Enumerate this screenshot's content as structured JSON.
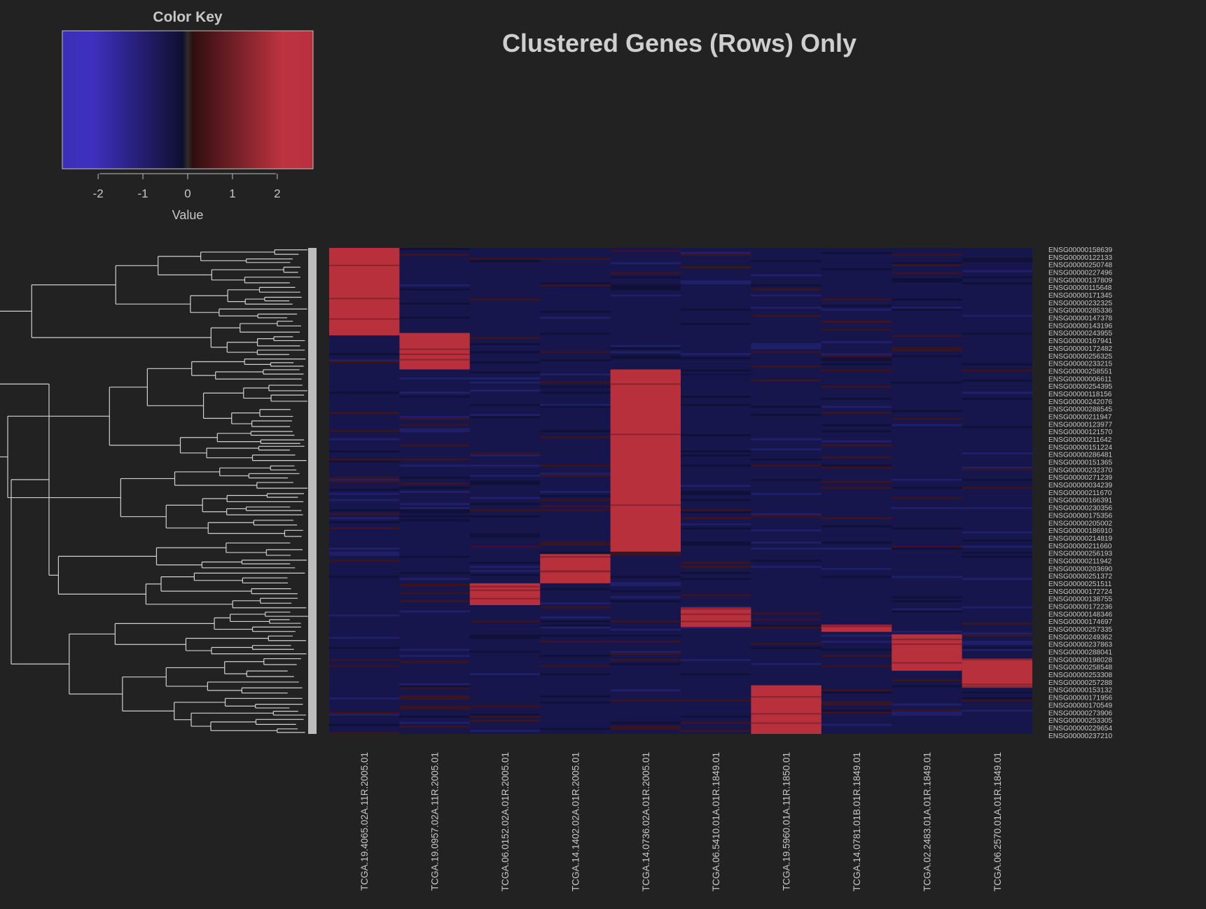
{
  "chart_data": {
    "type": "heatmap",
    "title": "Clustered Genes (Rows) Only",
    "color_key": {
      "title": "Color Key",
      "xlabel": "Value",
      "range": [
        -2.8,
        2.8
      ],
      "ticks": [
        -2,
        -1,
        0,
        1,
        2
      ],
      "tick_labels": [
        "-2",
        "-1",
        "0",
        "1",
        "2"
      ],
      "colors": [
        "#3a2fb8",
        "#11113a",
        "#2b2b2b",
        "#3a1414",
        "#b8303c"
      ]
    },
    "colors": {
      "background": "#222222",
      "high": "#b8303c",
      "low": "#16164e",
      "text": "#c8c8c8"
    },
    "columns": [
      "TCGA.19.4065.02A.11R.2005.01",
      "TCGA.19.0957.02A.11R.2005.01",
      "TCGA.06.0152.02A.01R.2005.01",
      "TCGA.14.1402.02A.01R.2005.01",
      "TCGA.14.0736.02A.01R.2005.01",
      "TCGA.06.5410.01A.01R.1849.01",
      "TCGA.19.5960.01A.11R.1850.01",
      "TCGA.14.0781.01B.01R.1849.01",
      "TCGA.02.2483.01A.01R.1849.01",
      "TCGA.06.2570.01A.01R.1849.01"
    ],
    "row_labels": [
      "ENSG00000158639",
      "ENSG00000122133",
      "ENSG00000250748",
      "ENSG00000227496",
      "ENSG00000137809",
      "ENSG00000115648",
      "ENSG00000171345",
      "ENSG00000232325",
      "ENSG00000285336",
      "ENSG00000147378",
      "ENSG00000143196",
      "ENSG00000243955",
      "ENSG00000167941",
      "ENSG00000172482",
      "ENSG00000256325",
      "ENSG00000233215",
      "ENSG00000258551",
      "ENSG00000006611",
      "ENSG00000254395",
      "ENSG00000118156",
      "ENSG00000242076",
      "ENSG00000288545",
      "ENSG00000211947",
      "ENSG00000123977",
      "ENSG00000121570",
      "ENSG00000211642",
      "ENSG00000151224",
      "ENSG00000286481",
      "ENSG00000151365",
      "ENSG00000232370",
      "ENSG00000271239",
      "ENSG00000034239",
      "ENSG00000211670",
      "ENSG00000166391",
      "ENSG00000230356",
      "ENSG00000175356",
      "ENSG00000205002",
      "ENSG00000186910",
      "ENSG00000214819",
      "ENSG00000211660",
      "ENSG00000256193",
      "ENSG00000211942",
      "ENSG00000203690",
      "ENSG00000251372",
      "ENSG00000251511",
      "ENSG00000172724",
      "ENSG00000138755",
      "ENSG00000172236",
      "ENSG00000148346",
      "ENSG00000174697",
      "ENSG00000257335",
      "ENSG00000249362",
      "ENSG00000237863",
      "ENSG00000288041",
      "ENSG00000198028",
      "ENSG00000258548",
      "ENSG00000253308",
      "ENSG00000257288",
      "ENSG00000153132",
      "ENSG00000171956",
      "ENSG00000170549",
      "ENSG00000273906",
      "ENSG00000253305",
      "ENSG00000229654",
      "ENSG00000237210"
    ],
    "high_blocks": [
      {
        "column": 0,
        "row_range": [
          0.0,
          0.18
        ]
      },
      {
        "column": 1,
        "row_range": [
          0.175,
          0.25
        ]
      },
      {
        "column": 4,
        "row_range": [
          0.25,
          0.625
        ]
      },
      {
        "column": 3,
        "row_range": [
          0.63,
          0.69
        ]
      },
      {
        "column": 2,
        "row_range": [
          0.69,
          0.735
        ]
      },
      {
        "column": 5,
        "row_range": [
          0.74,
          0.78
        ]
      },
      {
        "column": 7,
        "row_range": [
          0.775,
          0.79
        ]
      },
      {
        "column": 8,
        "row_range": [
          0.795,
          0.87
        ]
      },
      {
        "column": 9,
        "row_range": [
          0.845,
          0.905
        ]
      },
      {
        "column": 6,
        "row_range": [
          0.9,
          1.0
        ]
      }
    ]
  }
}
